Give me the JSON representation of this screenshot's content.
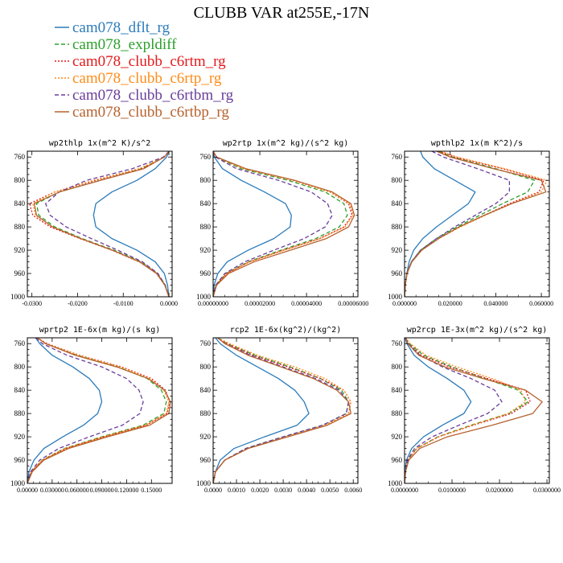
{
  "title": "CLUBB VAR at255E,-17N",
  "colors": {
    "cam078_dflt_rg": "#2b7bba",
    "cam078_expldiff": "#2ca02c",
    "cam078_clubb_c6rtm_rg": "#e31a1c",
    "cam078_clubb_c6rtp_rg": "#ff8c1a",
    "cam078_clubb_c6rtbm_rg": "#6a3d9a",
    "cam078_clubb_c6rtbp_rg": "#b5622e"
  },
  "legend": [
    {
      "name": "cam078_dflt_rg",
      "dash": "solid"
    },
    {
      "name": "cam078_expldiff",
      "dash": "dash"
    },
    {
      "name": "cam078_clubb_c6rtm_rg",
      "dash": "dot"
    },
    {
      "name": "cam078_clubb_c6rtp_rg",
      "dash": "dot"
    },
    {
      "name": "cam078_clubb_c6rtbm_rg",
      "dash": "dash"
    },
    {
      "name": "cam078_clubb_c6rtbp_rg",
      "dash": "solid"
    }
  ],
  "chart_data": [
    {
      "type": "line",
      "title": "wp2thlp   1x(m^2 K)/s^2",
      "xlim": [
        -0.031,
        0.0007
      ],
      "ylim": [
        750,
        1000
      ],
      "y_inverted": true,
      "xticks": [
        -0.03,
        -0.02,
        -0.01,
        0.0
      ],
      "xtick_labels": [
        "-0.0300",
        "-0.0200",
        "-0.0100",
        "0.0000"
      ],
      "yticks": [
        760,
        800,
        840,
        880,
        920,
        960,
        1000
      ],
      "y": [
        750,
        760,
        780,
        800,
        820,
        840,
        860,
        880,
        900,
        920,
        940,
        960,
        980,
        1000
      ],
      "series": [
        {
          "name": "cam078_dflt_rg",
          "x": [
            0.0,
            -0.0005,
            -0.003,
            -0.007,
            -0.0125,
            -0.016,
            -0.0165,
            -0.016,
            -0.0125,
            -0.007,
            -0.003,
            -0.001,
            -0.0003,
            0.0
          ]
        },
        {
          "name": "cam078_expldiff",
          "x": [
            0.0,
            -0.001,
            -0.006,
            -0.015,
            -0.024,
            -0.029,
            -0.0285,
            -0.025,
            -0.019,
            -0.012,
            -0.006,
            -0.0025,
            -0.0008,
            0.0
          ]
        },
        {
          "name": "cam078_clubb_c6rtm_rg",
          "x": [
            0.0,
            -0.001,
            -0.006,
            -0.016,
            -0.025,
            -0.0305,
            -0.0298,
            -0.026,
            -0.0195,
            -0.0125,
            -0.0065,
            -0.0027,
            -0.0009,
            0.0
          ]
        },
        {
          "name": "cam078_clubb_c6rtp_rg",
          "x": [
            0.0,
            -0.001,
            -0.0065,
            -0.0165,
            -0.025,
            -0.0298,
            -0.0292,
            -0.0255,
            -0.0192,
            -0.0123,
            -0.0063,
            -0.0026,
            -0.0009,
            0.0
          ]
        },
        {
          "name": "cam078_clubb_c6rtbm_rg",
          "x": [
            0.0,
            -0.0012,
            -0.008,
            -0.018,
            -0.024,
            -0.027,
            -0.026,
            -0.0225,
            -0.017,
            -0.0112,
            -0.0058,
            -0.0024,
            -0.0008,
            0.0
          ]
        },
        {
          "name": "cam078_clubb_c6rtbp_rg",
          "x": [
            0.0,
            -0.001,
            -0.0055,
            -0.015,
            -0.024,
            -0.0295,
            -0.029,
            -0.0255,
            -0.0193,
            -0.0124,
            -0.0064,
            -0.0027,
            -0.0009,
            0.0
          ]
        }
      ]
    },
    {
      "type": "line",
      "title": "wp2rtp   1x(m^2 kg)/(s^2 kg)",
      "xlim": [
        0,
        6.2e-05
      ],
      "ylim": [
        750,
        1000
      ],
      "y_inverted": true,
      "xticks": [
        0,
        2e-05,
        4e-05,
        6e-05
      ],
      "xtick_labels": [
        "0.00000000",
        "0.00002000",
        "0.00004000",
        "0.00006000"
      ],
      "yticks": [
        760,
        800,
        840,
        880,
        920,
        960,
        1000
      ],
      "y": [
        750,
        760,
        780,
        800,
        820,
        840,
        860,
        880,
        900,
        920,
        940,
        960,
        980,
        1000
      ],
      "series": [
        {
          "name": "cam078_dflt_rg",
          "x": [
            0.0,
            5e-07,
            4e-06,
            1.2e-05,
            2.2e-05,
            3.1e-05,
            3.35e-05,
            3.3e-05,
            2.6e-05,
            1.5e-05,
            6e-06,
            2e-06,
            4e-07,
            0.0
          ]
        },
        {
          "name": "cam078_expldiff",
          "x": [
            0.0,
            1.2e-06,
            1.2e-05,
            3.2e-05,
            4.8e-05,
            5.6e-05,
            5.75e-05,
            5.4e-05,
            4.4e-05,
            2.9e-05,
            1.5e-05,
            5.5e-06,
            1.2e-06,
            0.0
          ]
        },
        {
          "name": "cam078_clubb_c6rtm_rg",
          "x": [
            0.0,
            1.4e-06,
            1.3e-05,
            3.4e-05,
            5e-05,
            5.8e-05,
            5.95e-05,
            5.6e-05,
            4.55e-05,
            3e-05,
            1.55e-05,
            5.8e-06,
            1.3e-06,
            0.0
          ]
        },
        {
          "name": "cam078_clubb_c6rtp_rg",
          "x": [
            0.0,
            1.4e-06,
            1.3e-05,
            3.4e-05,
            5e-05,
            5.85e-05,
            6e-05,
            5.65e-05,
            4.6e-05,
            3.05e-05,
            1.57e-05,
            5.9e-06,
            1.3e-06,
            0.0
          ]
        },
        {
          "name": "cam078_clubb_c6rtbm_rg",
          "x": [
            0.0,
            1e-06,
            1e-05,
            2.8e-05,
            4.2e-05,
            4.9e-05,
            5.1e-05,
            4.8e-05,
            3.9e-05,
            2.6e-05,
            1.35e-05,
            5e-06,
            1.1e-06,
            0.0
          ]
        },
        {
          "name": "cam078_clubb_c6rtbp_rg",
          "x": [
            0.0,
            1.5e-06,
            1.4e-05,
            3.5e-05,
            5.1e-05,
            5.9e-05,
            6.05e-05,
            5.8e-05,
            4.85e-05,
            3.3e-05,
            1.75e-05,
            6.6e-06,
            1.5e-06,
            0.0
          ]
        }
      ]
    },
    {
      "type": "line",
      "title": "wpthlp2   1x(m K^2)/s",
      "xlim": [
        0,
        0.0635
      ],
      "ylim": [
        750,
        1000
      ],
      "y_inverted": true,
      "xticks": [
        0.0,
        0.02,
        0.04,
        0.06
      ],
      "xtick_labels": [
        "0.000000",
        "0.020000",
        "0.040000",
        "0.060000"
      ],
      "yticks": [
        760,
        800,
        840,
        880,
        920,
        960,
        1000
      ],
      "y": [
        750,
        760,
        780,
        800,
        820,
        840,
        860,
        880,
        900,
        920,
        940,
        960,
        980,
        1000
      ],
      "series": [
        {
          "name": "cam078_dflt_rg",
          "x": [
            0.007,
            0.008,
            0.013,
            0.022,
            0.031,
            0.028,
            0.021,
            0.014,
            0.008,
            0.004,
            0.002,
            0.001,
            0.0003,
            0.0
          ]
        },
        {
          "name": "cam078_expldiff",
          "x": [
            0.015,
            0.021,
            0.04,
            0.057,
            0.054,
            0.043,
            0.033,
            0.023,
            0.014,
            0.007,
            0.003,
            0.001,
            0.0003,
            0.0
          ]
        },
        {
          "name": "cam078_clubb_c6rtm_rg",
          "x": [
            0.015,
            0.022,
            0.043,
            0.061,
            0.059,
            0.046,
            0.035,
            0.024,
            0.015,
            0.0075,
            0.0032,
            0.0011,
            0.0003,
            0.0
          ]
        },
        {
          "name": "cam078_clubb_c6rtp_rg",
          "x": [
            0.016,
            0.023,
            0.044,
            0.0625,
            0.06,
            0.047,
            0.0355,
            0.0245,
            0.015,
            0.0076,
            0.0032,
            0.0011,
            0.0003,
            0.0
          ]
        },
        {
          "name": "cam078_clubb_c6rtbm_rg",
          "x": [
            0.012,
            0.017,
            0.032,
            0.046,
            0.046,
            0.04,
            0.031,
            0.022,
            0.014,
            0.007,
            0.003,
            0.001,
            0.0003,
            0.0
          ]
        },
        {
          "name": "cam078_clubb_c6rtbp_rg",
          "x": [
            0.014,
            0.02,
            0.039,
            0.06,
            0.062,
            0.047,
            0.035,
            0.024,
            0.015,
            0.0075,
            0.0032,
            0.0011,
            0.0003,
            0.0
          ]
        }
      ]
    },
    {
      "type": "line",
      "title": "wprtp2   1E-6x(m kg)/(s kg)",
      "xlim": [
        0,
        0.175
      ],
      "ylim": [
        750,
        1000
      ],
      "y_inverted": true,
      "xticks": [
        0.0,
        0.03,
        0.06,
        0.09,
        0.12,
        0.15
      ],
      "xtick_labels": [
        "0.00000",
        "0.030000",
        "0.060000",
        "0.090000",
        "0.120000",
        "0.15000"
      ],
      "yticks": [
        760,
        800,
        840,
        880,
        920,
        960,
        1000
      ],
      "y": [
        750,
        760,
        780,
        800,
        820,
        840,
        860,
        880,
        900,
        920,
        940,
        960,
        980,
        1000
      ],
      "series": [
        {
          "name": "cam078_dflt_rg",
          "x": [
            0.01,
            0.015,
            0.03,
            0.055,
            0.075,
            0.087,
            0.09,
            0.085,
            0.068,
            0.043,
            0.02,
            0.008,
            0.002,
            0.0
          ]
        },
        {
          "name": "cam078_expldiff",
          "x": [
            0.012,
            0.022,
            0.06,
            0.11,
            0.145,
            0.162,
            0.168,
            0.165,
            0.14,
            0.09,
            0.045,
            0.018,
            0.005,
            0.0
          ]
        },
        {
          "name": "cam078_clubb_c6rtm_rg",
          "x": [
            0.012,
            0.024,
            0.063,
            0.114,
            0.15,
            0.167,
            0.172,
            0.169,
            0.144,
            0.093,
            0.047,
            0.019,
            0.005,
            0.0
          ]
        },
        {
          "name": "cam078_clubb_c6rtp_rg",
          "x": [
            0.012,
            0.023,
            0.062,
            0.112,
            0.148,
            0.165,
            0.171,
            0.168,
            0.143,
            0.092,
            0.046,
            0.018,
            0.005,
            0.0
          ]
        },
        {
          "name": "cam078_clubb_c6rtbm_rg",
          "x": [
            0.01,
            0.018,
            0.048,
            0.09,
            0.12,
            0.135,
            0.14,
            0.136,
            0.115,
            0.075,
            0.038,
            0.015,
            0.004,
            0.0
          ]
        },
        {
          "name": "cam078_clubb_c6rtbp_rg",
          "x": [
            0.012,
            0.022,
            0.058,
            0.108,
            0.146,
            0.166,
            0.173,
            0.171,
            0.148,
            0.097,
            0.05,
            0.02,
            0.006,
            0.0
          ]
        }
      ]
    },
    {
      "type": "line",
      "title": "rcp2   1E-6x(kg^2)/(kg^2)",
      "xlim": [
        0,
        0.0062
      ],
      "ylim": [
        750,
        1000
      ],
      "y_inverted": true,
      "xticks": [
        0.0,
        0.001,
        0.002,
        0.003,
        0.004,
        0.005,
        0.006
      ],
      "xtick_labels": [
        "0.0000",
        "0.0010",
        "0.0020",
        "0.0030",
        "0.0040",
        "0.0050",
        "0.0060"
      ],
      "yticks": [
        760,
        800,
        840,
        880,
        920,
        960,
        1000
      ],
      "y": [
        750,
        760,
        780,
        800,
        820,
        840,
        860,
        880,
        900,
        920,
        940,
        960,
        980,
        1000
      ],
      "series": [
        {
          "name": "cam078_dflt_rg",
          "x": [
            0.0001,
            0.0003,
            0.001,
            0.0019,
            0.0028,
            0.0035,
            0.0039,
            0.0041,
            0.0036,
            0.0022,
            0.0009,
            0.0003,
            0.0001,
            0.0
          ]
        },
        {
          "name": "cam078_expldiff",
          "x": [
            0.0002,
            0.0006,
            0.0018,
            0.0033,
            0.0046,
            0.0055,
            0.0058,
            0.0057,
            0.0047,
            0.003,
            0.0014,
            0.0005,
            0.0001,
            0.0
          ]
        },
        {
          "name": "cam078_clubb_c6rtm_rg",
          "x": [
            0.0002,
            0.0006,
            0.0017,
            0.0032,
            0.0046,
            0.0056,
            0.0059,
            0.0058,
            0.0048,
            0.0031,
            0.0015,
            0.0005,
            0.0001,
            0.0
          ]
        },
        {
          "name": "cam078_clubb_c6rtp_rg",
          "x": [
            0.0002,
            0.0007,
            0.0019,
            0.0035,
            0.0048,
            0.0056,
            0.0059,
            0.0058,
            0.0048,
            0.0031,
            0.0015,
            0.0005,
            0.0001,
            0.0
          ]
        },
        {
          "name": "cam078_clubb_c6rtbm_rg",
          "x": [
            0.0002,
            0.0005,
            0.0016,
            0.003,
            0.0044,
            0.0054,
            0.0058,
            0.0057,
            0.0047,
            0.003,
            0.0014,
            0.0005,
            0.0001,
            0.0
          ]
        },
        {
          "name": "cam078_clubb_c6rtbp_rg",
          "x": [
            0.0002,
            0.0005,
            0.0015,
            0.0029,
            0.0043,
            0.0053,
            0.0058,
            0.0059,
            0.0049,
            0.0032,
            0.0015,
            0.0005,
            0.0001,
            0.0
          ]
        }
      ]
    },
    {
      "type": "line",
      "title": "wp2rcp   1E-3x(m^2 kg)/(s^2 kg)",
      "xlim": [
        0,
        0.0305
      ],
      "ylim": [
        750,
        1000
      ],
      "y_inverted": true,
      "xticks": [
        0.0,
        0.01,
        0.02,
        0.03
      ],
      "xtick_labels": [
        "0.0000000",
        "0.0100000",
        "0.0200000",
        "0.0300000"
      ],
      "yticks": [
        760,
        800,
        840,
        880,
        920,
        960,
        1000
      ],
      "y": [
        750,
        760,
        780,
        800,
        820,
        840,
        860,
        880,
        900,
        920,
        940,
        960,
        980,
        1000
      ],
      "series": [
        {
          "name": "cam078_dflt_rg",
          "x": [
            0.0001,
            0.0005,
            0.002,
            0.005,
            0.009,
            0.0125,
            0.014,
            0.0125,
            0.008,
            0.004,
            0.0015,
            0.0004,
            0.0001,
            0.0
          ]
        },
        {
          "name": "cam078_expldiff",
          "x": [
            0.0002,
            0.001,
            0.004,
            0.01,
            0.017,
            0.024,
            0.026,
            0.022,
            0.014,
            0.007,
            0.0025,
            0.0007,
            0.0002,
            0.0
          ]
        },
        {
          "name": "cam078_clubb_c6rtm_rg",
          "x": [
            0.0002,
            0.0008,
            0.0035,
            0.0095,
            0.0175,
            0.0255,
            0.0265,
            0.0225,
            0.0145,
            0.0072,
            0.0026,
            0.0007,
            0.0002,
            0.0
          ]
        },
        {
          "name": "cam078_clubb_c6rtp_rg",
          "x": [
            0.0002,
            0.0012,
            0.0045,
            0.011,
            0.0185,
            0.0245,
            0.0255,
            0.0218,
            0.0142,
            0.0071,
            0.0026,
            0.0007,
            0.0002,
            0.0
          ]
        },
        {
          "name": "cam078_clubb_c6rtbm_rg",
          "x": [
            0.0002,
            0.0008,
            0.0032,
            0.008,
            0.014,
            0.019,
            0.0205,
            0.0175,
            0.0115,
            0.0058,
            0.0021,
            0.0006,
            0.0002,
            0.0
          ]
        },
        {
          "name": "cam078_clubb_c6rtbp_rg",
          "x": [
            0.0002,
            0.0007,
            0.003,
            0.0085,
            0.0165,
            0.0255,
            0.029,
            0.027,
            0.0185,
            0.009,
            0.0032,
            0.0009,
            0.0002,
            0.0
          ]
        }
      ]
    }
  ]
}
